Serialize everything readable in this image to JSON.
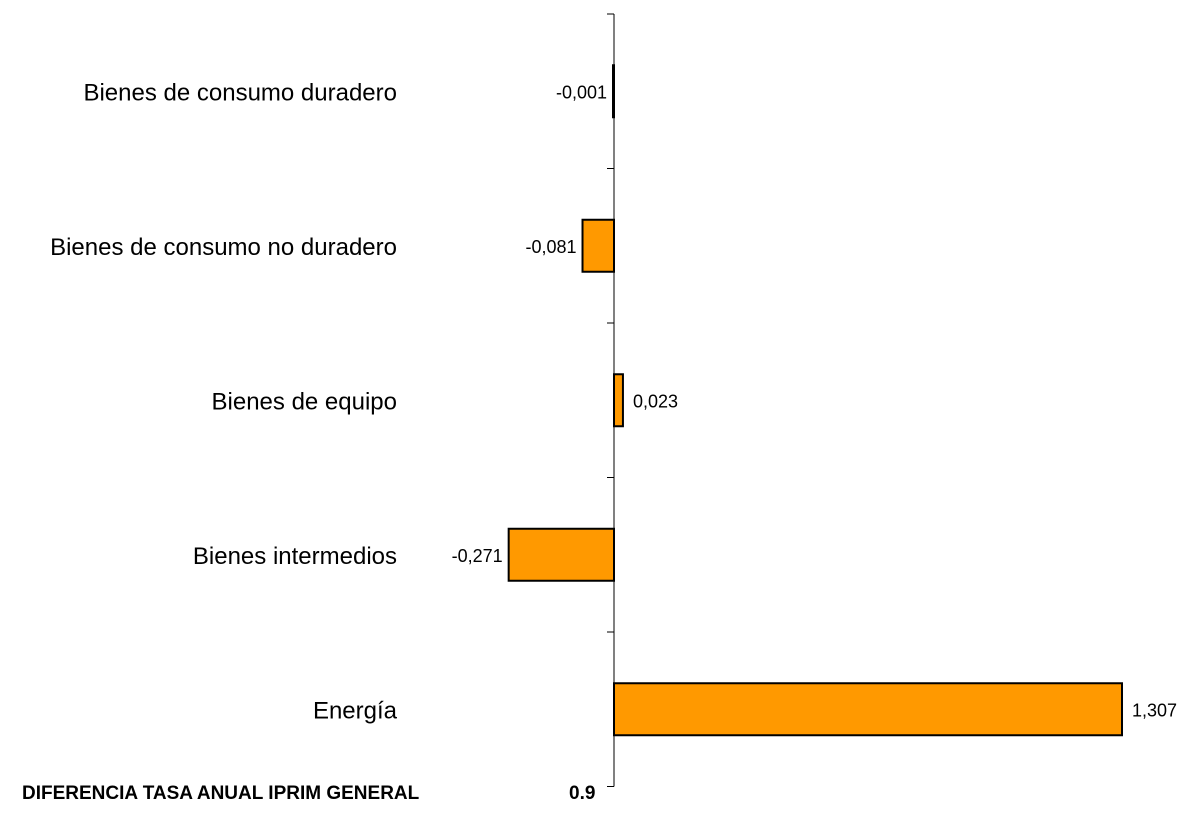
{
  "chart_data": {
    "type": "bar",
    "orientation": "horizontal",
    "categories": [
      "Bienes de consumo duradero",
      "Bienes de consumo no duradero",
      "Bienes de equipo",
      "Bienes intermedios",
      "Energía"
    ],
    "values": [
      -0.001,
      -0.081,
      0.023,
      -0.271,
      1.307
    ],
    "value_labels": [
      "-0,001",
      "-0,081",
      "0,023",
      "-0,271",
      "1,307"
    ],
    "title": "",
    "xlabel": "",
    "ylabel": "",
    "xlim": [
      -0.3,
      1.32
    ],
    "grid": false,
    "legend": "none",
    "bar_color": "#FF9900",
    "bar_edge_color": "#000000"
  },
  "footer": {
    "label": "DIFERENCIA TASA ANUAL IPRIM GENERAL",
    "value": "0.9"
  }
}
